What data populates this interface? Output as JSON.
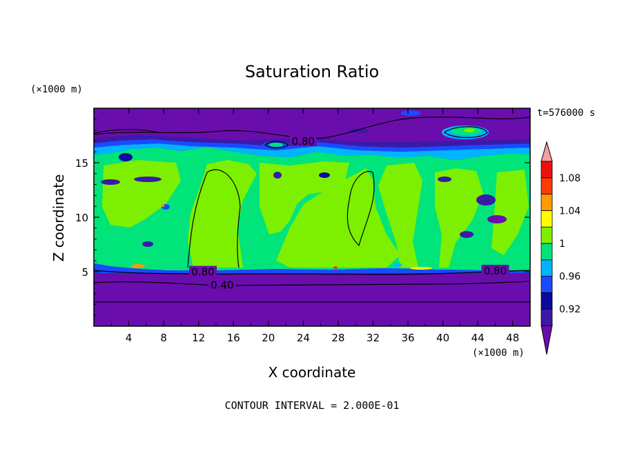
{
  "chart_data": {
    "type": "heatmap",
    "title": "Saturation Ratio",
    "xlabel": "X coordinate",
    "ylabel": "Z coordinate",
    "x_unit_label": "(×1000 m)",
    "y_unit_label": "(×1000 m)",
    "time_label": "t=576000 s",
    "footer": "CONTOUR INTERVAL = 2.000E-01",
    "xlim": [
      0,
      50
    ],
    "ylim": [
      0,
      20
    ],
    "x_ticks": [
      4,
      8,
      12,
      16,
      20,
      24,
      28,
      32,
      36,
      40,
      44,
      48
    ],
    "y_ticks": [
      5,
      10,
      15
    ],
    "x_tick_labels": [
      "4",
      "8",
      "12",
      "16",
      "20",
      "24",
      "28",
      "32",
      "36",
      "40",
      "44",
      "48"
    ],
    "y_tick_labels": [
      "5",
      "10",
      "15"
    ],
    "colorbar": {
      "levels": [
        0.9,
        0.92,
        0.94,
        0.96,
        0.98,
        1.0,
        1.02,
        1.04,
        1.06,
        1.08,
        1.1
      ],
      "labels": [
        "0.92",
        "0.96",
        "1",
        "1.04",
        "1.08"
      ],
      "label_values": [
        0.92,
        0.96,
        1.0,
        1.04,
        1.08
      ],
      "colors": [
        "#6a0dad",
        "#3a1aa8",
        "#0a0aa0",
        "#1a4aff",
        "#00b4ff",
        "#00e47a",
        "#7cf000",
        "#ffff00",
        "#ff9a00",
        "#ff3a00",
        "#ee1010",
        "#f4a0a0"
      ]
    },
    "contour_labels": [
      {
        "text": "0.80",
        "x": 24.0,
        "y": 16.9
      },
      {
        "text": "0.80",
        "x": 12.5,
        "y": 4.9
      },
      {
        "text": "0.80",
        "x": 46.0,
        "y": 5.0
      },
      {
        "text": "0.40",
        "x": 14.7,
        "y": 3.7
      }
    ],
    "regions": {
      "upper_dry_band_z": [
        16.5,
        20
      ],
      "moist_layer_z": [
        5.3,
        16.0
      ],
      "lower_dry_band_z": [
        0,
        5.3
      ]
    }
  }
}
